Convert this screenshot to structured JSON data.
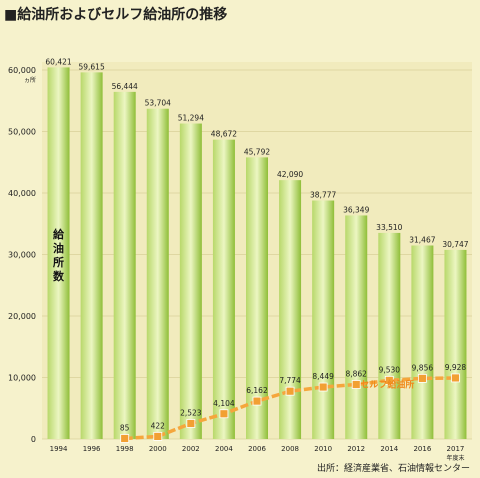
{
  "title": "■給油所およびセルフ給油所の推移",
  "source": "出所：経済産業省、石油情報センター",
  "unit_label": "ヵ所",
  "bar_label": "給油所数",
  "chart_data": {
    "type": "bar",
    "categories": [
      "1994",
      "1996",
      "1998",
      "2000",
      "2002",
      "2004",
      "2006",
      "2008",
      "2010",
      "2012",
      "2014",
      "2016",
      "2017"
    ],
    "x_last_suffix": "年度末",
    "ylim": [
      0,
      60000
    ],
    "yticks": [
      0,
      10000,
      20000,
      30000,
      40000,
      50000,
      60000
    ],
    "ytick_labels": [
      "0",
      "10,000",
      "20,000",
      "30,000",
      "40,000",
      "50,000",
      "60,000"
    ],
    "grid": true,
    "series": [
      {
        "name": "給油所数",
        "type": "bar",
        "values": [
          60421,
          59615,
          56444,
          53704,
          51294,
          48672,
          45792,
          42090,
          38777,
          36349,
          33510,
          31467,
          30747
        ],
        "labels": [
          "60,421",
          "59,615",
          "56,444",
          "53,704",
          "51,294",
          "48,672",
          "45,792",
          "42,090",
          "38,777",
          "36,349",
          "33,510",
          "31,467",
          "30,747"
        ],
        "color": "#8fc23c"
      },
      {
        "name": "セルフ給油所",
        "type": "line",
        "values": [
          null,
          null,
          85,
          422,
          2523,
          4104,
          6162,
          7774,
          8449,
          8862,
          9530,
          9856,
          9928
        ],
        "labels": [
          "",
          "",
          "85",
          "422",
          "2,523",
          "4,104",
          "6,162",
          "7,774",
          "8,449",
          "8,862",
          "9,530",
          "9,856",
          "9,928"
        ],
        "color": "#f2a033"
      }
    ]
  }
}
